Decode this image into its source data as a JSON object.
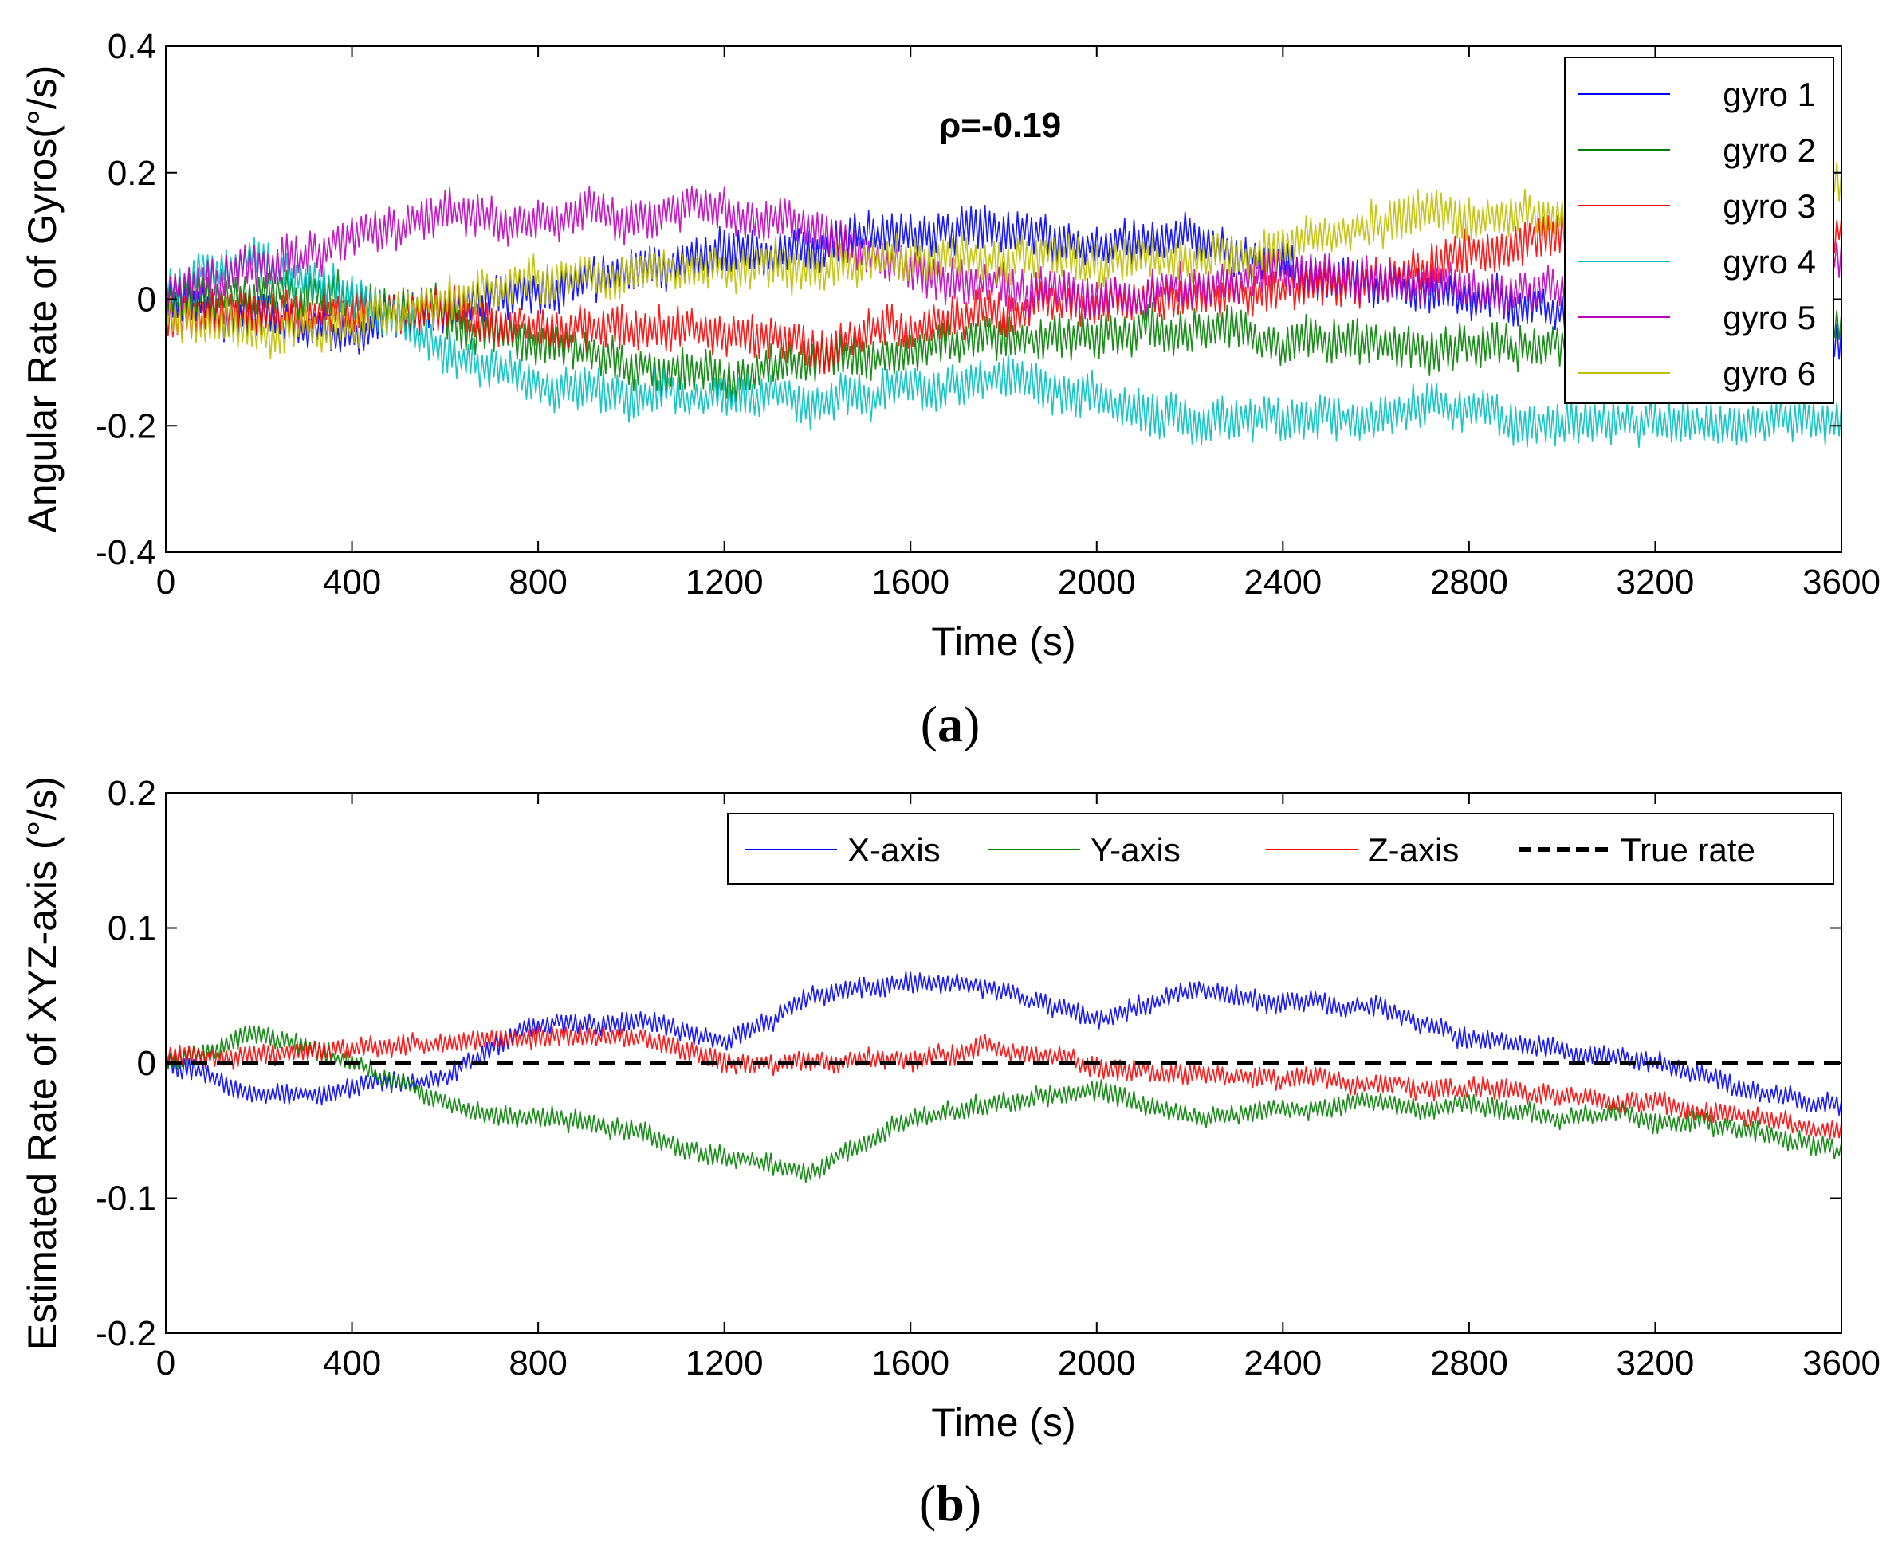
{
  "chart_data": [
    {
      "type": "line",
      "panel_label": "a",
      "title": "",
      "xlabel": "Time (s)",
      "ylabel": "Angular Rate of Gyros(°/s)",
      "xlim": [
        0,
        3600
      ],
      "ylim": [
        -0.4,
        0.4
      ],
      "xticks": [
        0,
        400,
        800,
        1200,
        1600,
        2000,
        2400,
        2800,
        3200,
        3600
      ],
      "yticks": [
        -0.4,
        -0.2,
        0,
        0.2,
        0.4
      ],
      "ytick_labels": [
        "-0.4",
        "-0.2",
        "0",
        "0.2",
        "0.4"
      ],
      "annotation": "ρ=-0.19",
      "legend_position": "top-right",
      "noise_amplitude": 0.035,
      "x": [
        0,
        200,
        400,
        600,
        800,
        1000,
        1200,
        1400,
        1600,
        1800,
        2000,
        2200,
        2400,
        2600,
        2800,
        3000,
        3200,
        3400,
        3600
      ],
      "series": [
        {
          "name": "gyro 1",
          "color": "#0000ff",
          "values": [
            0.0,
            -0.03,
            -0.05,
            -0.02,
            0.02,
            0.05,
            0.07,
            0.08,
            0.12,
            0.1,
            0.08,
            0.09,
            0.05,
            0.02,
            0.0,
            -0.02,
            -0.04,
            -0.06,
            -0.08
          ]
        },
        {
          "name": "gyro 2",
          "color": "#008000",
          "values": [
            0.0,
            0.01,
            0.0,
            -0.03,
            -0.06,
            -0.1,
            -0.12,
            -0.1,
            -0.08,
            -0.07,
            -0.06,
            -0.05,
            -0.06,
            -0.07,
            -0.08,
            -0.06,
            -0.05,
            -0.04,
            -0.05
          ]
        },
        {
          "name": "gyro 3",
          "color": "#ff0000",
          "values": [
            -0.03,
            -0.03,
            -0.02,
            -0.01,
            -0.04,
            -0.05,
            -0.06,
            -0.07,
            -0.04,
            -0.02,
            -0.01,
            0.0,
            0.01,
            0.03,
            0.07,
            0.1,
            0.09,
            0.08,
            0.09
          ]
        },
        {
          "name": "gyro 4",
          "color": "#00bfbf",
          "values": [
            0.02,
            0.06,
            0.0,
            -0.08,
            -0.14,
            -0.15,
            -0.15,
            -0.16,
            -0.14,
            -0.13,
            -0.15,
            -0.19,
            -0.2,
            -0.18,
            -0.18,
            -0.19,
            -0.19,
            -0.2,
            -0.19
          ]
        },
        {
          "name": "gyro 5",
          "color": "#bf00bf",
          "values": [
            0.02,
            0.04,
            0.1,
            0.13,
            0.12,
            0.14,
            0.15,
            0.1,
            0.04,
            0.02,
            0.0,
            0.02,
            0.04,
            0.03,
            0.02,
            0.02,
            0.03,
            0.05,
            0.07
          ]
        },
        {
          "name": "gyro 6",
          "color": "#bfbf00",
          "values": [
            -0.02,
            -0.05,
            -0.04,
            0.0,
            0.03,
            0.04,
            0.06,
            0.05,
            0.06,
            0.07,
            0.06,
            0.06,
            0.08,
            0.12,
            0.14,
            0.12,
            0.13,
            0.15,
            0.17
          ]
        }
      ]
    },
    {
      "type": "line",
      "panel_label": "b",
      "title": "",
      "xlabel": "Time (s)",
      "ylabel": "Estimated Rate of XYZ-axis (°/s)",
      "xlim": [
        0,
        3600
      ],
      "ylim": [
        -0.2,
        0.2
      ],
      "xticks": [
        0,
        400,
        800,
        1200,
        1600,
        2000,
        2400,
        2800,
        3200,
        3600
      ],
      "yticks": [
        -0.2,
        -0.1,
        0,
        0.1,
        0.2
      ],
      "ytick_labels": [
        "-0.2",
        "-0.1",
        "0",
        "0.1",
        "0.2"
      ],
      "legend_position": "top-right",
      "noise_amplitude": 0.008,
      "x": [
        0,
        200,
        400,
        600,
        800,
        1000,
        1200,
        1400,
        1600,
        1800,
        2000,
        2200,
        2400,
        2600,
        2800,
        3000,
        3200,
        3400,
        3600
      ],
      "series": [
        {
          "name": "X-axis",
          "color": "#0000ff",
          "values": [
            0.0,
            -0.025,
            -0.02,
            -0.01,
            0.03,
            0.03,
            0.02,
            0.05,
            0.06,
            0.055,
            0.03,
            0.055,
            0.045,
            0.04,
            0.02,
            0.01,
            0.0,
            -0.02,
            -0.035
          ]
        },
        {
          "name": "Y-axis",
          "color": "#008000",
          "values": [
            0.0,
            0.02,
            0.0,
            -0.03,
            -0.04,
            -0.05,
            -0.07,
            -0.08,
            -0.04,
            -0.03,
            -0.02,
            -0.04,
            -0.035,
            -0.03,
            -0.03,
            -0.04,
            -0.04,
            -0.05,
            -0.065
          ]
        },
        {
          "name": "Z-axis",
          "color": "#ff0000",
          "values": [
            0.005,
            0.005,
            0.01,
            0.015,
            0.02,
            0.02,
            0.0,
            0.0,
            0.005,
            0.01,
            0.0,
            -0.01,
            -0.01,
            -0.015,
            -0.02,
            -0.025,
            -0.03,
            -0.04,
            -0.05
          ]
        },
        {
          "name": "True rate",
          "color": "#000000",
          "dashed": true,
          "values": [
            0,
            0,
            0,
            0,
            0,
            0,
            0,
            0,
            0,
            0,
            0,
            0,
            0,
            0,
            0,
            0,
            0,
            0,
            0
          ]
        }
      ]
    }
  ]
}
